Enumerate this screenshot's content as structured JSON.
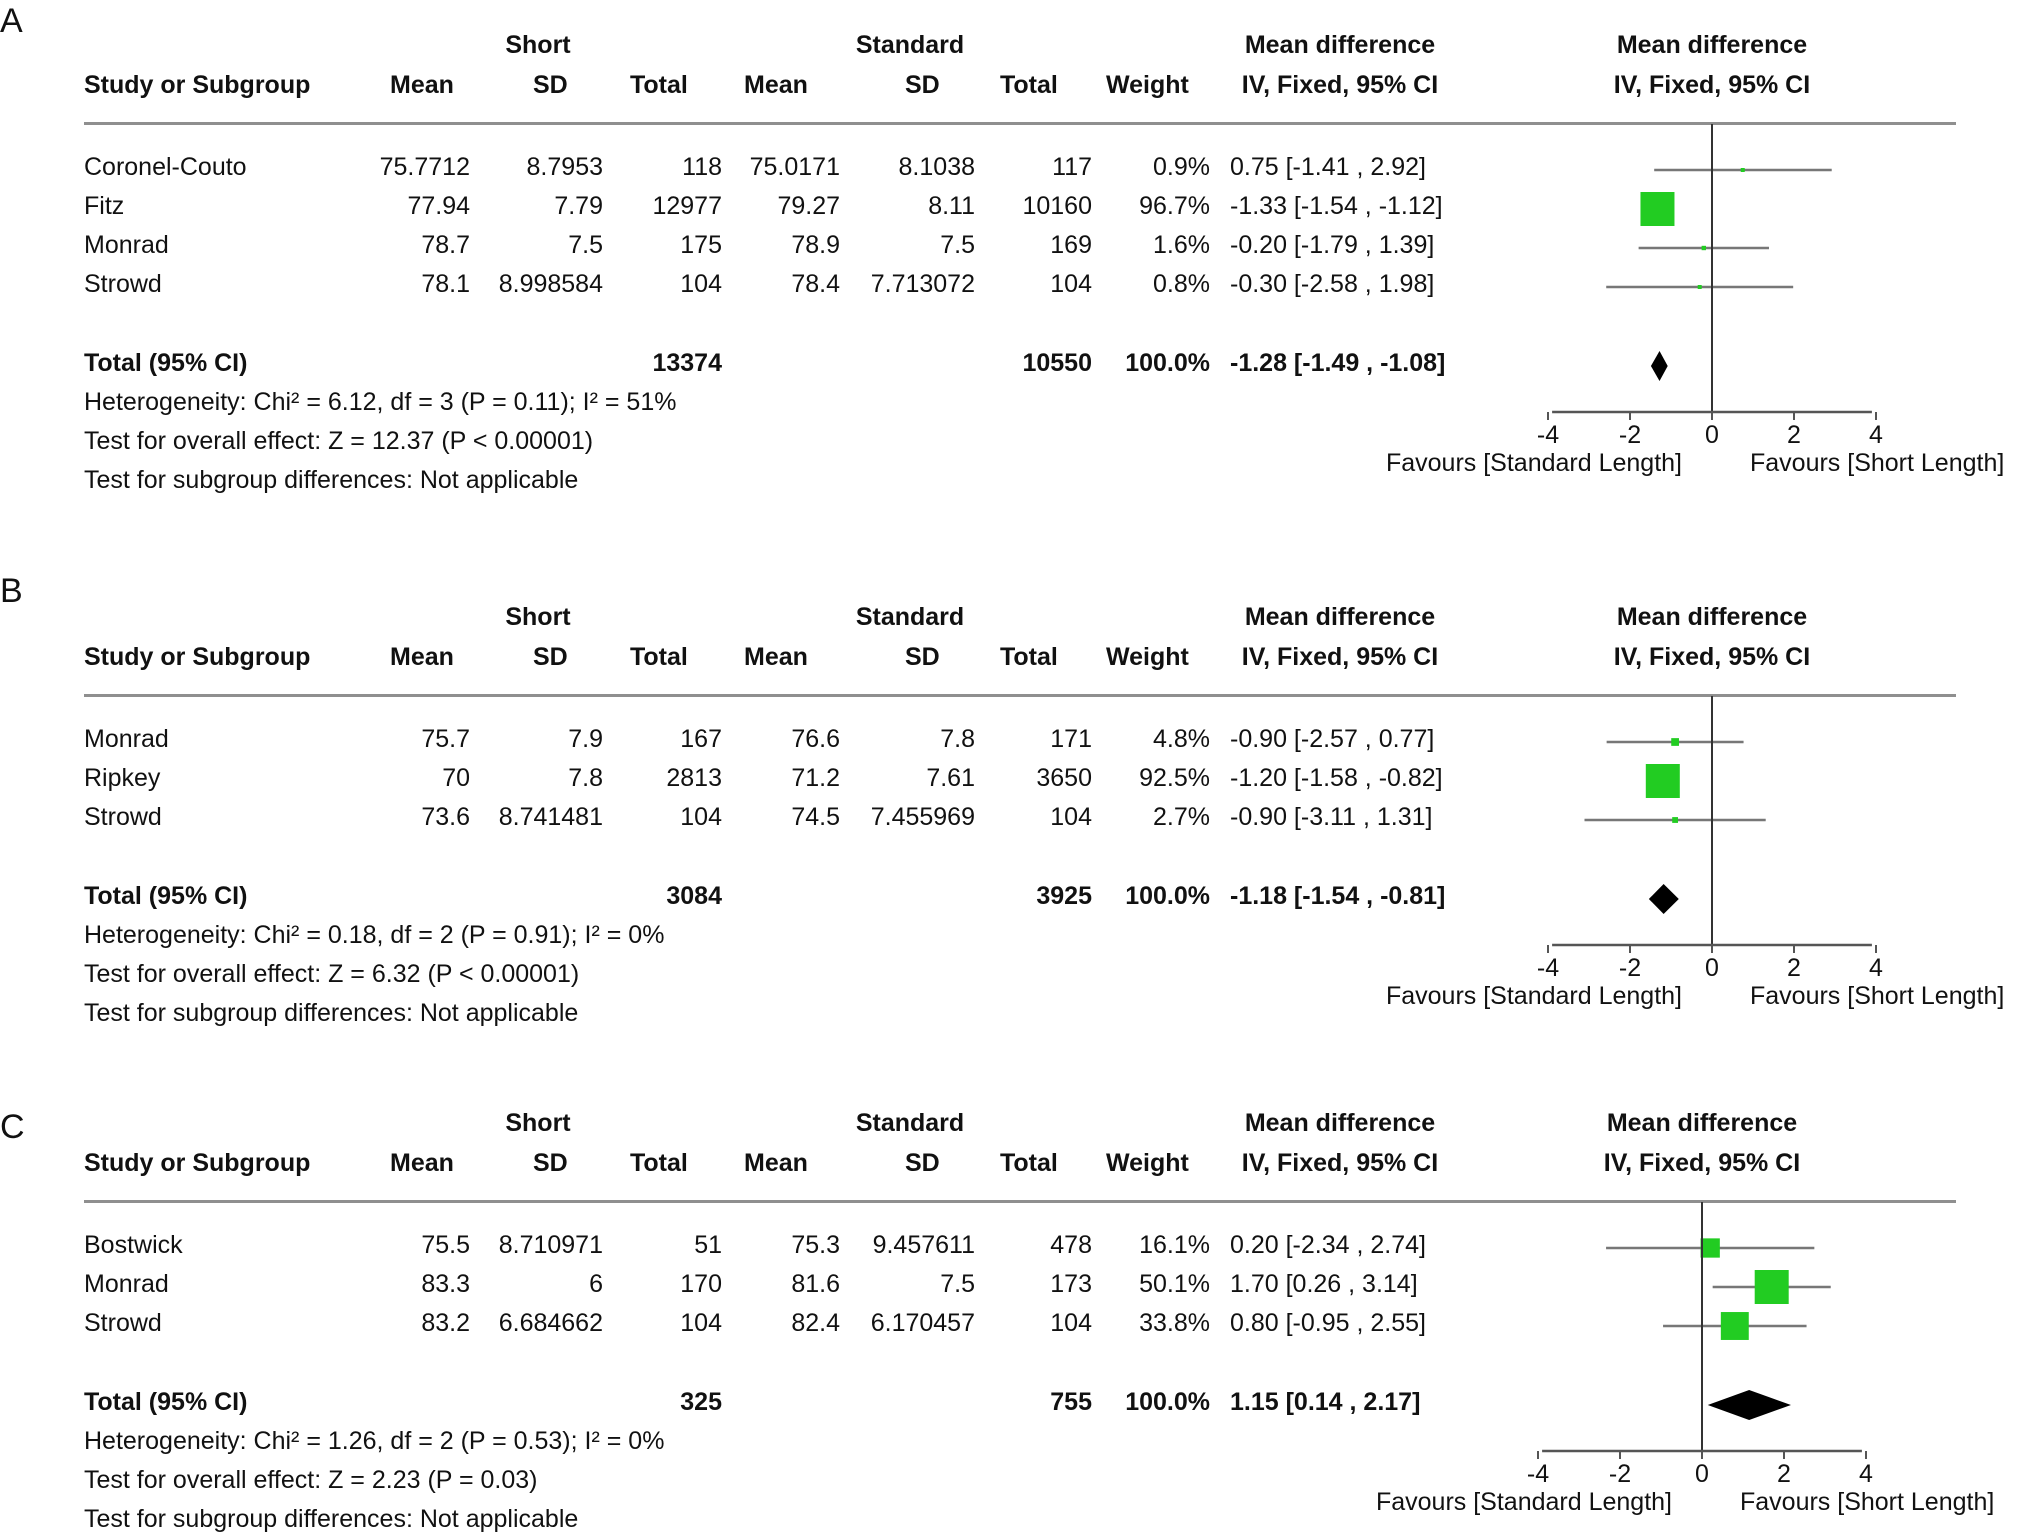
{
  "colors": {
    "square": "#22cc22",
    "diamond": "#000000",
    "ci_line": "#777777",
    "axis": "#555555"
  },
  "headers": {
    "group1": "Short",
    "group2": "Standard",
    "study": "Study or Subgroup",
    "mean": "Mean",
    "sd": "SD",
    "total": "Total",
    "weight": "Weight",
    "md_top": "Mean difference",
    "md_bottom": "IV, Fixed, 95% CI",
    "plot_top": "Mean difference",
    "plot_bottom": "IV, Fixed, 95% CI"
  },
  "axis": {
    "ticks": [
      "-4",
      "-2",
      "0",
      "2",
      "4"
    ],
    "left_label": "Favours [Standard Length]",
    "right_label": "Favours [Short Length]"
  },
  "chart_data": [
    {
      "type": "forest",
      "panel": "A",
      "xlim": [
        -5,
        5
      ],
      "ticks": [
        -4,
        -2,
        0,
        2,
        4
      ],
      "studies": [
        {
          "name": "Coronel-Couto",
          "mean1": "75.7712",
          "sd1": "8.7953",
          "total1": "118",
          "mean2": "75.0171",
          "sd2": "8.1038",
          "total2": "117",
          "weight": "0.9%",
          "ci": "0.75 [-1.41 , 2.92]",
          "est": 0.75,
          "lo": -1.41,
          "hi": 2.92,
          "w": 0.9
        },
        {
          "name": "Fitz",
          "mean1": "77.94",
          "sd1": "7.79",
          "total1": "12977",
          "mean2": "79.27",
          "sd2": "8.11",
          "total2": "10160",
          "weight": "96.7%",
          "ci": "-1.33 [-1.54 , -1.12]",
          "est": -1.33,
          "lo": -1.54,
          "hi": -1.12,
          "w": 96.7
        },
        {
          "name": "Monrad",
          "mean1": "78.7",
          "sd1": "7.5",
          "total1": "175",
          "mean2": "78.9",
          "sd2": "7.5",
          "total2": "169",
          "weight": "1.6%",
          "ci": "-0.20 [-1.79 , 1.39]",
          "est": -0.2,
          "lo": -1.79,
          "hi": 1.39,
          "w": 1.6
        },
        {
          "name": "Strowd",
          "mean1": "78.1",
          "sd1": "8.998584",
          "total1": "104",
          "mean2": "78.4",
          "sd2": "7.713072",
          "total2": "104",
          "weight": "0.8%",
          "ci": "-0.30 [-2.58 , 1.98]",
          "est": -0.3,
          "lo": -2.58,
          "hi": 1.98,
          "w": 0.8
        }
      ],
      "total": {
        "label": "Total (95% CI)",
        "total1": "13374",
        "total2": "10550",
        "weight": "100.0%",
        "ci": "-1.28 [-1.49 , -1.08]",
        "est": -1.28,
        "lo": -1.49,
        "hi": -1.08
      },
      "heterogeneity": "Heterogeneity: Chi² = 6.12, df = 3 (P = 0.11); I² = 51%",
      "overall": "Test for overall effect: Z = 12.37 (P < 0.00001)",
      "subgroup": "Test for subgroup differences: Not applicable"
    },
    {
      "type": "forest",
      "panel": "B",
      "xlim": [
        -5,
        5
      ],
      "ticks": [
        -4,
        -2,
        0,
        2,
        4
      ],
      "studies": [
        {
          "name": "Monrad",
          "mean1": "75.7",
          "sd1": "7.9",
          "total1": "167",
          "mean2": "76.6",
          "sd2": "7.8",
          "total2": "171",
          "weight": "4.8%",
          "ci": "-0.90 [-2.57 , 0.77]",
          "est": -0.9,
          "lo": -2.57,
          "hi": 0.77,
          "w": 4.8
        },
        {
          "name": "Ripkey",
          "mean1": "70",
          "sd1": "7.8",
          "total1": "2813",
          "mean2": "71.2",
          "sd2": "7.61",
          "total2": "3650",
          "weight": "92.5%",
          "ci": "-1.20 [-1.58 , -0.82]",
          "est": -1.2,
          "lo": -1.58,
          "hi": -0.82,
          "w": 92.5
        },
        {
          "name": "Strowd",
          "mean1": "73.6",
          "sd1": "8.741481",
          "total1": "104",
          "mean2": "74.5",
          "sd2": "7.455969",
          "total2": "104",
          "weight": "2.7%",
          "ci": "-0.90 [-3.11 , 1.31]",
          "est": -0.9,
          "lo": -3.11,
          "hi": 1.31,
          "w": 2.7
        }
      ],
      "total": {
        "label": "Total (95% CI)",
        "total1": "3084",
        "total2": "3925",
        "weight": "100.0%",
        "ci": "-1.18 [-1.54 , -0.81]",
        "est": -1.18,
        "lo": -1.54,
        "hi": -0.81
      },
      "heterogeneity": "Heterogeneity: Chi² = 0.18, df = 2 (P = 0.91); I² = 0%",
      "overall": "Test for overall effect: Z = 6.32 (P < 0.00001)",
      "subgroup": "Test for subgroup differences: Not applicable"
    },
    {
      "type": "forest",
      "panel": "C",
      "xlim": [
        -5,
        5
      ],
      "ticks": [
        -4,
        -2,
        0,
        2,
        4
      ],
      "studies": [
        {
          "name": "Bostwick",
          "mean1": "75.5",
          "sd1": "8.710971",
          "total1": "51",
          "mean2": "75.3",
          "sd2": "9.457611",
          "total2": "478",
          "weight": "16.1%",
          "ci": "0.20 [-2.34 , 2.74]",
          "est": 0.2,
          "lo": -2.34,
          "hi": 2.74,
          "w": 16.1
        },
        {
          "name": "Monrad",
          "mean1": "83.3",
          "sd1": "6",
          "total1": "170",
          "mean2": "81.6",
          "sd2": "7.5",
          "total2": "173",
          "weight": "50.1%",
          "ci": "1.70 [0.26 , 3.14]",
          "est": 1.7,
          "lo": 0.26,
          "hi": 3.14,
          "w": 50.1
        },
        {
          "name": "Strowd",
          "mean1": "83.2",
          "sd1": "6.684662",
          "total1": "104",
          "mean2": "82.4",
          "sd2": "6.170457",
          "total2": "104",
          "weight": "33.8%",
          "ci": "0.80 [-0.95 , 2.55]",
          "est": 0.8,
          "lo": -0.95,
          "hi": 2.55,
          "w": 33.8
        }
      ],
      "total": {
        "label": "Total (95% CI)",
        "total1": "325",
        "total2": "755",
        "weight": "100.0%",
        "ci": "1.15 [0.14 , 2.17]",
        "est": 1.15,
        "lo": 0.14,
        "hi": 2.17
      },
      "heterogeneity": "Heterogeneity: Chi² = 1.26, df = 2 (P = 0.53); I² = 0%",
      "overall": "Test for overall effect: Z = 2.23 (P = 0.03)",
      "subgroup": "Test for subgroup differences: Not applicable"
    }
  ]
}
